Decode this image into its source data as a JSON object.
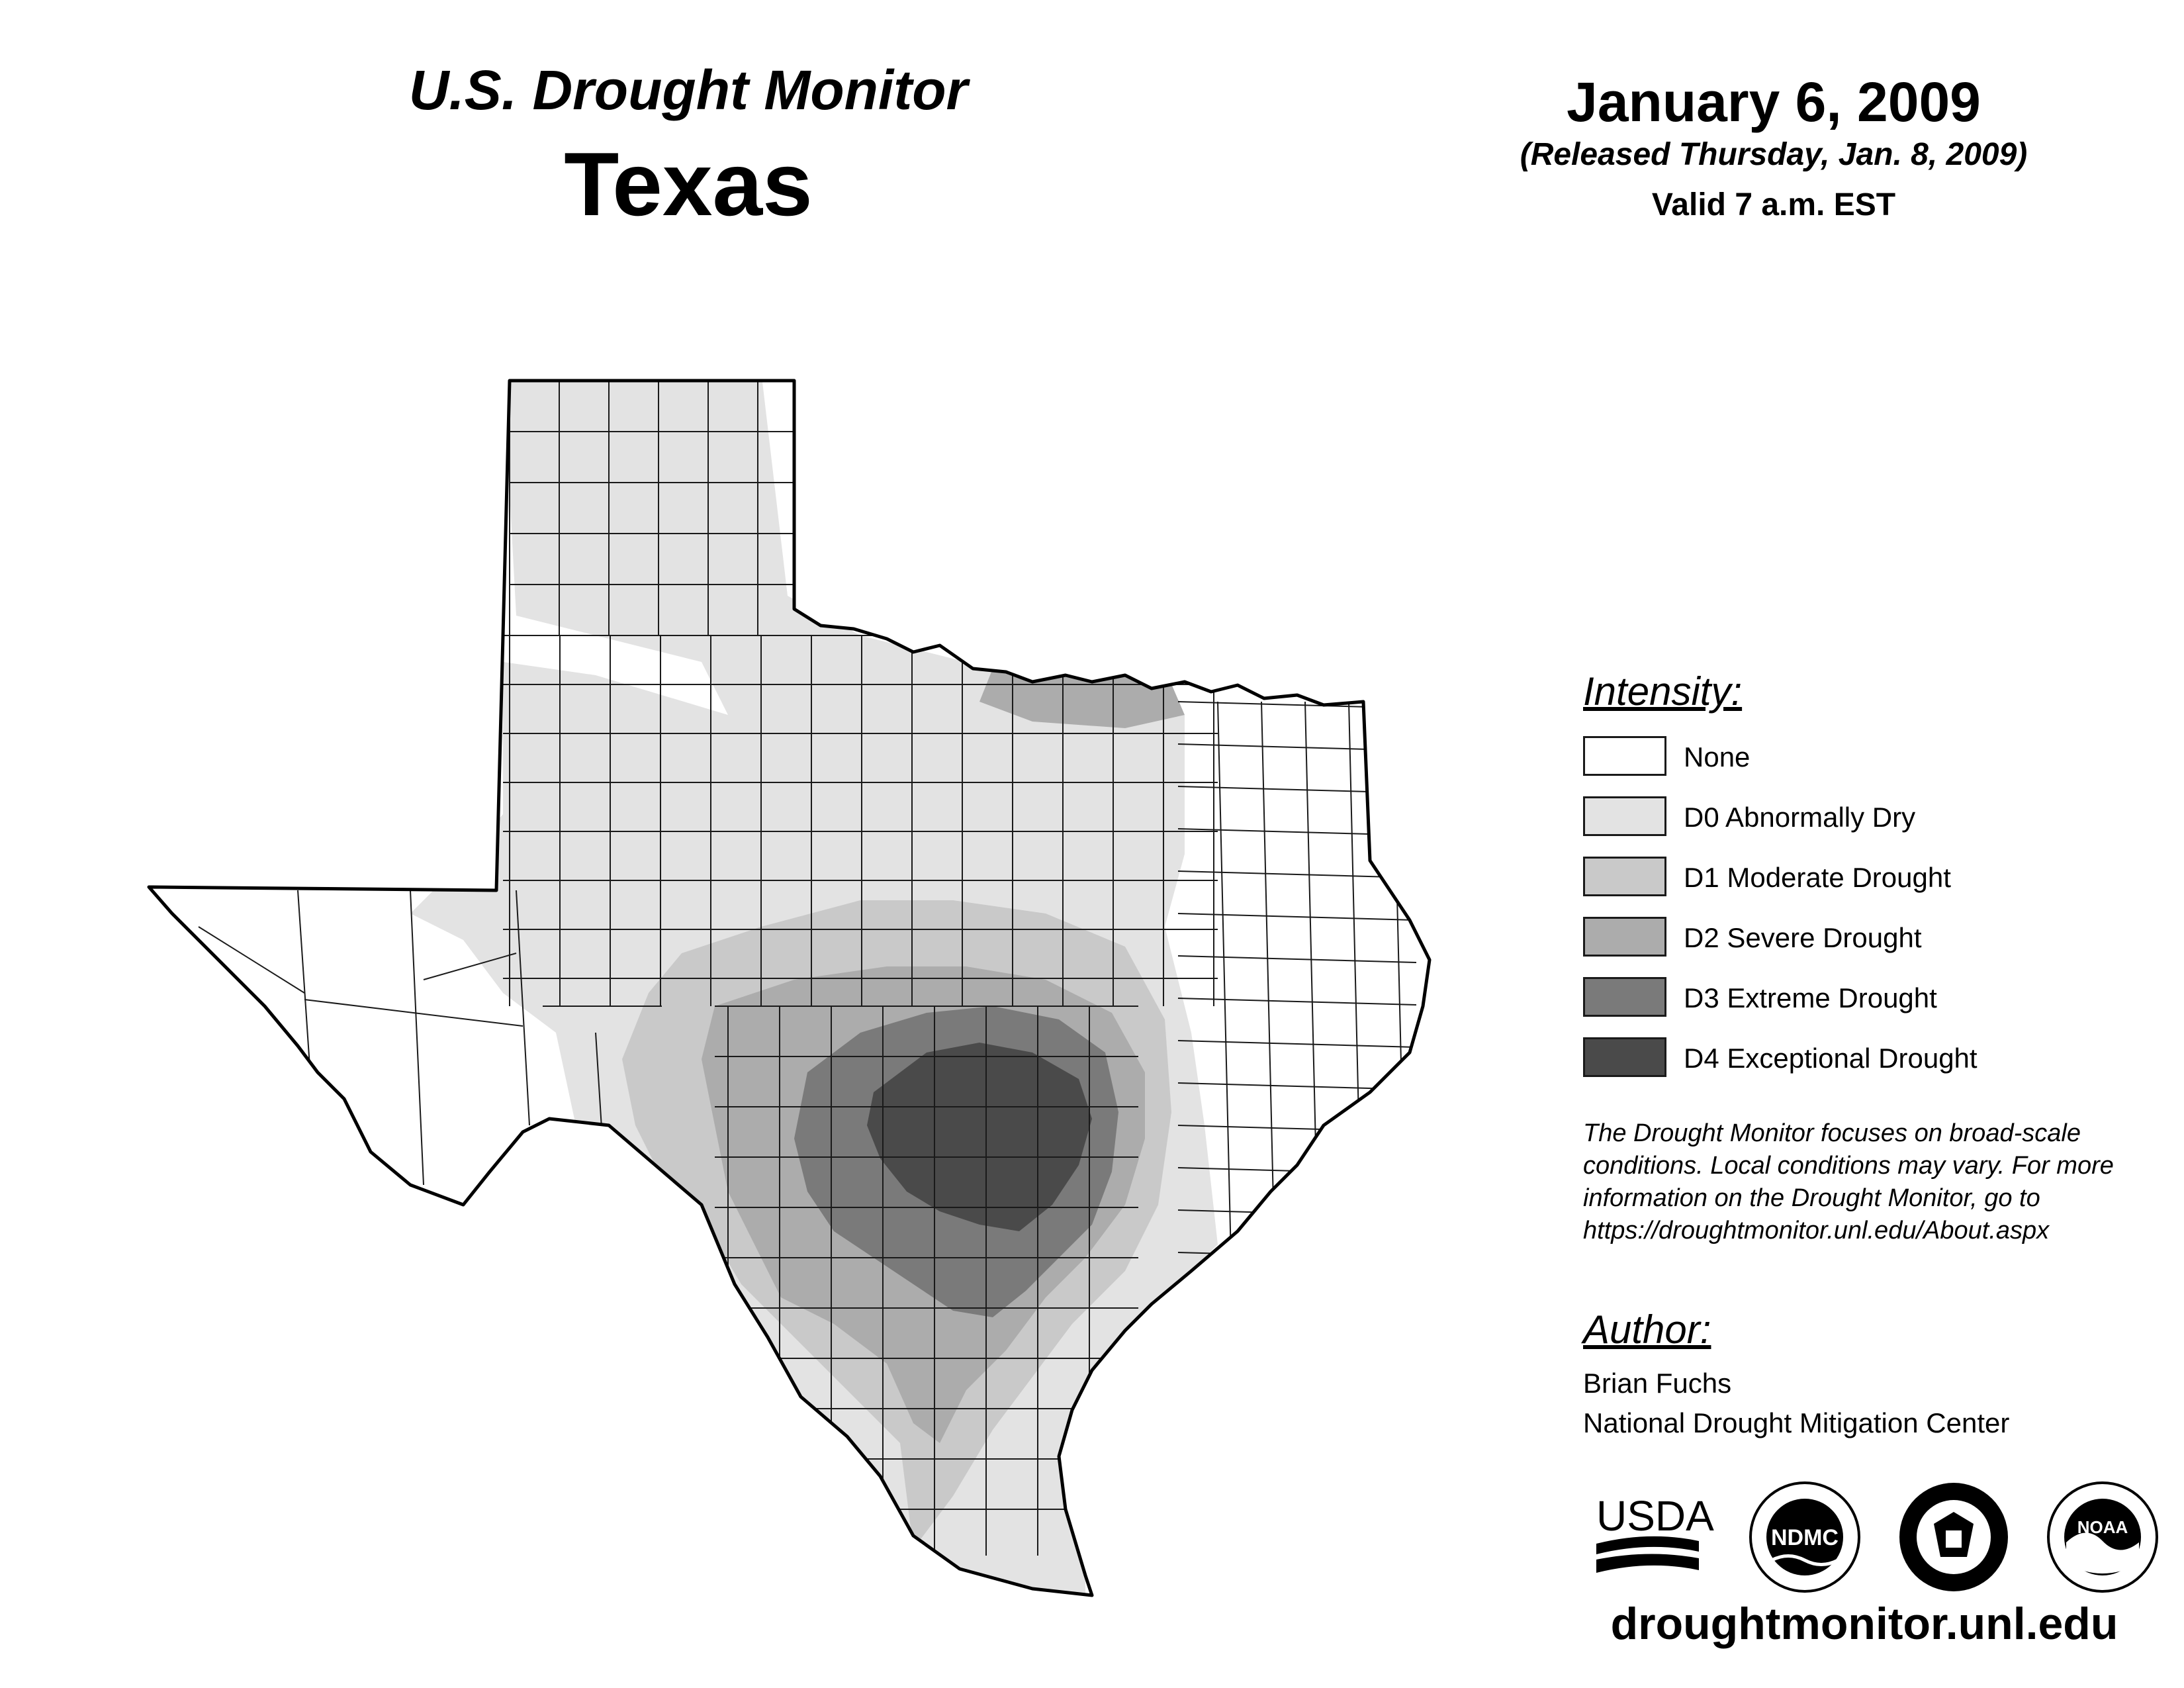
{
  "header": {
    "product": "U.S. Drought Monitor",
    "region": "Texas",
    "date": "January 6, 2009",
    "released": "(Released Thursday, Jan. 8, 2009)",
    "valid": "Valid 7 a.m. EST"
  },
  "legend": {
    "heading": "Intensity:",
    "items": [
      {
        "label": "None",
        "color": "#ffffff"
      },
      {
        "label": "D0 Abnormally Dry",
        "color": "#e3e3e3"
      },
      {
        "label": "D1 Moderate Drought",
        "color": "#c9c9c9"
      },
      {
        "label": "D2 Severe Drought",
        "color": "#acacac"
      },
      {
        "label": "D3 Extreme Drought",
        "color": "#7a7a7a"
      },
      {
        "label": "D4 Exceptional Drought",
        "color": "#4a4a4a"
      }
    ]
  },
  "note": "The Drought Monitor focuses on broad-scale conditions. Local conditions may vary. For more information on the Drought Monitor, go to https://droughtmonitor.unl.edu/About.aspx",
  "author": {
    "heading": "Author:",
    "name": "Brian Fuchs",
    "organization": "National Drought Mitigation Center"
  },
  "logos": {
    "usda": "USDA",
    "ndmc": "NDMC",
    "noaa": "NOAA"
  },
  "footer": {
    "url": "droughtmonitor.unl.edu"
  }
}
